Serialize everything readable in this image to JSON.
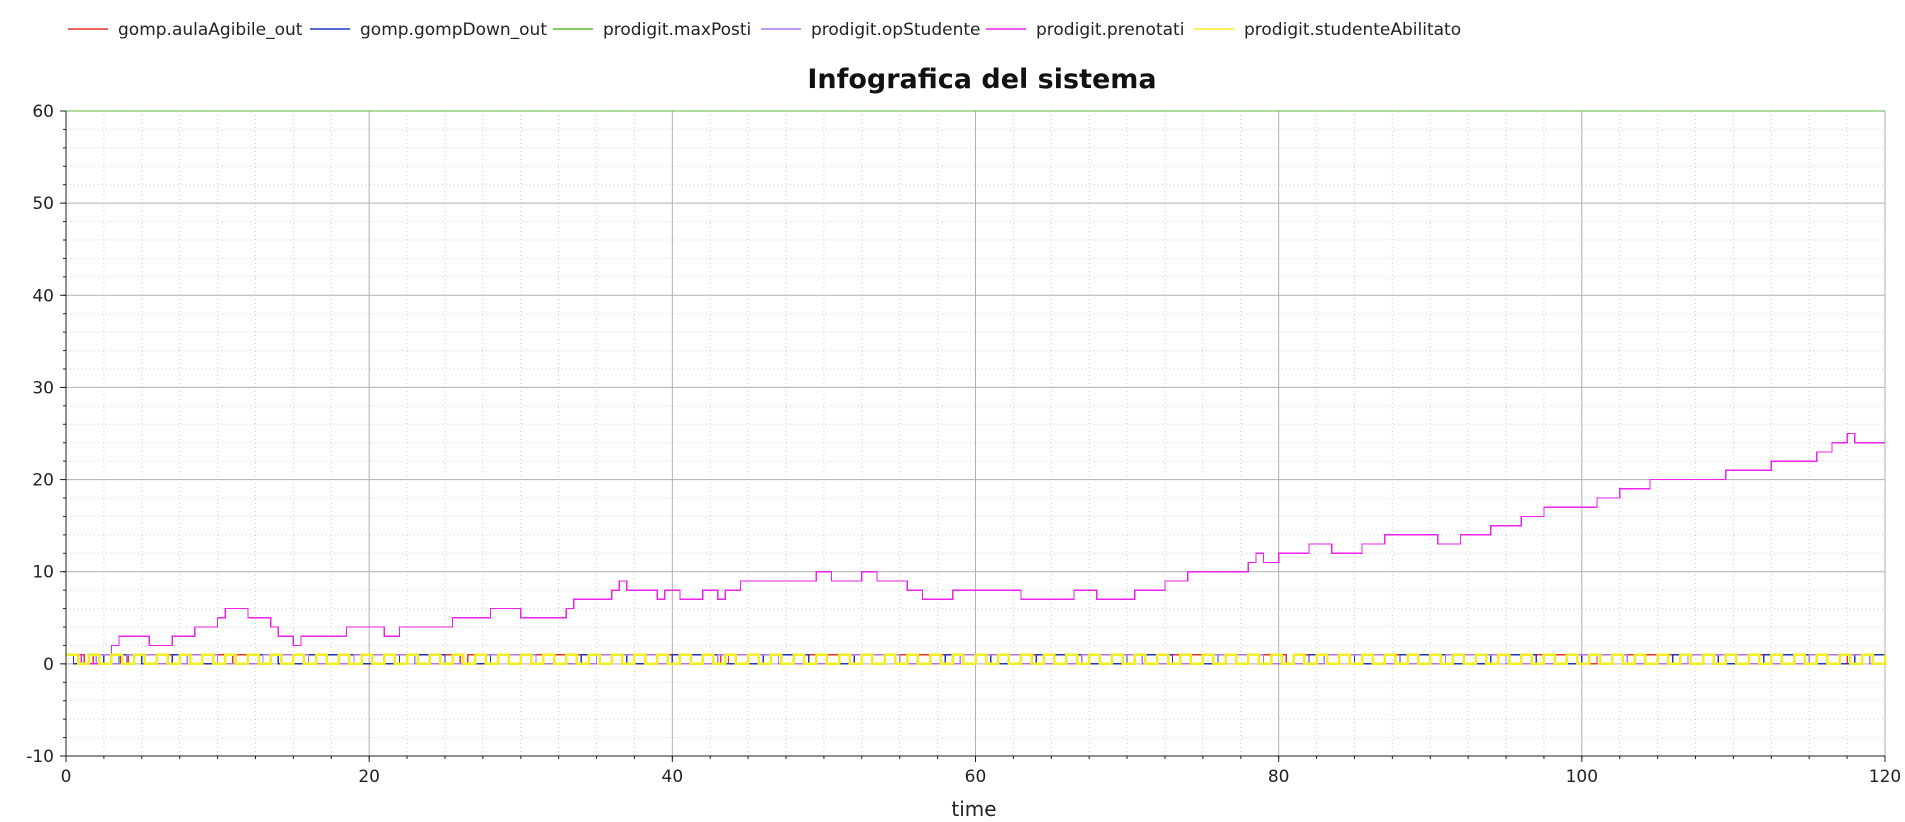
{
  "chart_data": {
    "type": "line",
    "title": "Infografica del sistema",
    "xlabel": "time",
    "ylabel": "",
    "xlim": [
      0,
      120
    ],
    "ylim": [
      -10,
      60
    ],
    "xticks": [
      0,
      20,
      40,
      60,
      80,
      100,
      120
    ],
    "yticks": [
      -10,
      0,
      10,
      20,
      30,
      40,
      50,
      60
    ],
    "grid": true,
    "legend_position": "top",
    "series": [
      {
        "name": "gomp.aulaAgibile_out",
        "color": "#e8332a",
        "step": true,
        "x": [
          0,
          1.2,
          1.8,
          3.6,
          4.1,
          10.5,
          11.0,
          26.0,
          26.5,
          43.2,
          43.7,
          61.0,
          61.5,
          80.5,
          81.0,
          100.5,
          101.0,
          117.5,
          118.0,
          120
        ],
        "y": [
          1,
          0,
          1,
          0,
          1,
          0,
          1,
          0,
          1,
          0,
          1,
          0,
          1,
          0,
          1,
          0,
          1,
          0,
          1,
          1
        ]
      },
      {
        "name": "gomp.gompDown_out",
        "color": "#2233cc",
        "step": true,
        "x": [
          0,
          0.5,
          1.5,
          2.5,
          3.5,
          5.0,
          7.0,
          9.0,
          12.0,
          14.0,
          16.0,
          19.0,
          22.0,
          25.0,
          28.0,
          31.0,
          34.0,
          37.0,
          40.0,
          43.0,
          46.0,
          49.0,
          52.0,
          55.0,
          58.0,
          61.0,
          64.0,
          67.0,
          70.0,
          73.0,
          76.0,
          79.0,
          82.0,
          85.0,
          88.0,
          91.0,
          94.0,
          97.0,
          100.0,
          103.0,
          106.0,
          109.0,
          112.0,
          115.0,
          118.0,
          120
        ],
        "y": [
          1,
          0,
          1,
          0,
          1,
          0,
          1,
          0,
          1,
          0,
          1,
          0,
          1,
          0,
          1,
          0,
          1,
          0,
          1,
          0,
          1,
          0,
          1,
          0,
          1,
          0,
          1,
          0,
          1,
          0,
          1,
          0,
          1,
          0,
          1,
          0,
          1,
          0,
          1,
          0,
          1,
          0,
          1,
          0,
          1,
          1
        ]
      },
      {
        "name": "prodigit.maxPosti",
        "color": "#55bb33",
        "step": true,
        "x": [
          0,
          120
        ],
        "y": [
          60,
          60
        ]
      },
      {
        "name": "prodigit.opStudente",
        "color": "#aa77ee",
        "step": true,
        "x": [
          0,
          1.0,
          2.0,
          3.0,
          4.0,
          6.0,
          8.0,
          10.0,
          13.0,
          16.0,
          19.0,
          23.0,
          27.0,
          31.0,
          35.0,
          39.0,
          43.0,
          47.0,
          51.0,
          55.0,
          59.0,
          63.0,
          67.0,
          71.0,
          75.0,
          79.0,
          83.0,
          87.0,
          91.0,
          95.0,
          99.0,
          103.0,
          107.0,
          111.0,
          115.0,
          119.0,
          120
        ],
        "y": [
          1,
          0,
          1,
          0,
          1,
          0,
          1,
          0,
          1,
          0,
          1,
          0,
          1,
          0,
          1,
          0,
          1,
          0,
          1,
          0,
          1,
          0,
          1,
          0,
          1,
          0,
          1,
          0,
          1,
          0,
          1,
          0,
          1,
          0,
          1,
          0,
          0
        ]
      },
      {
        "name": "prodigit.prenotati",
        "color": "#ee22ee",
        "step": true,
        "x": [
          0,
          1,
          3,
          3.5,
          5.5,
          7,
          8.5,
          10,
          10.5,
          12,
          13.5,
          14,
          15,
          15.5,
          18.5,
          21,
          22,
          25.5,
          28,
          30,
          33,
          33.5,
          34.5,
          36,
          36.5,
          37,
          39,
          39.5,
          40,
          40.5,
          42,
          43,
          43.5,
          44.5,
          49.5,
          50.5,
          52.5,
          53.5,
          55.5,
          56.5,
          58.5,
          63,
          66.5,
          68,
          70.5,
          72.5,
          74,
          78,
          78.5,
          79,
          79.5,
          80,
          82,
          83.5,
          85.5,
          87,
          90.5,
          92,
          94,
          96,
          97.5,
          99,
          101,
          102.5,
          104.5,
          109.5,
          112.5,
          115.5,
          116,
          116.5,
          117.5,
          118,
          120
        ],
        "y": [
          1,
          0,
          2,
          3,
          2,
          3,
          4,
          5,
          6,
          5,
          4,
          3,
          2,
          3,
          4,
          3,
          4,
          5,
          6,
          5,
          6,
          7,
          7,
          8,
          9,
          8,
          7,
          8,
          8,
          7,
          8,
          7,
          8,
          9,
          10,
          9,
          10,
          9,
          8,
          7,
          8,
          7,
          8,
          7,
          8,
          9,
          10,
          11,
          12,
          11,
          11,
          12,
          13,
          12,
          13,
          14,
          13,
          14,
          15,
          16,
          17,
          17,
          18,
          19,
          20,
          21,
          22,
          23,
          23,
          24,
          25,
          24,
          24
        ]
      },
      {
        "name": "prodigit.studenteAbilitato",
        "color": "#f2ee22",
        "step": true,
        "x": [
          0,
          0.8,
          1.5,
          2.2,
          3.0,
          3.7,
          4.5,
          5.2,
          6.0,
          6.7,
          7.5,
          8.2,
          9.0,
          9.7,
          10.5,
          11.2,
          12.0,
          12.7,
          13.5,
          14.2,
          15.0,
          15.7,
          16.5,
          17.2,
          18.0,
          18.7,
          19.5,
          20.2,
          21.0,
          21.7,
          22.5,
          23.2,
          24.0,
          24.7,
          25.5,
          26.2,
          27.0,
          27.7,
          28.5,
          29.2,
          30.0,
          30.7,
          31.5,
          32.2,
          33.0,
          33.7,
          34.5,
          35.2,
          36.0,
          36.7,
          37.5,
          38.2,
          39.0,
          39.7,
          40.5,
          41.2,
          42.0,
          42.7,
          43.5,
          44.2,
          45.0,
          45.7,
          46.5,
          47.2,
          48.0,
          48.7,
          49.5,
          50.2,
          51.0,
          51.7,
          52.5,
          53.2,
          54.0,
          54.7,
          55.5,
          56.2,
          57.0,
          57.7,
          58.5,
          59.2,
          60.0,
          60.7,
          61.5,
          62.2,
          63.0,
          63.7,
          64.5,
          65.2,
          66.0,
          66.7,
          67.5,
          68.2,
          69.0,
          69.7,
          70.5,
          71.2,
          72.0,
          72.7,
          73.5,
          74.2,
          75.0,
          75.7,
          76.5,
          77.2,
          78.0,
          78.7,
          79.5,
          80.2,
          81.0,
          81.7,
          82.5,
          83.2,
          84.0,
          84.7,
          85.5,
          86.2,
          87.0,
          87.7,
          88.5,
          89.2,
          90.0,
          90.7,
          91.5,
          92.2,
          93.0,
          93.7,
          94.5,
          95.2,
          96.0,
          96.7,
          97.5,
          98.2,
          99.0,
          99.7,
          100.5,
          101.2,
          102.0,
          102.7,
          103.5,
          104.2,
          105.0,
          105.7,
          106.5,
          107.2,
          108.0,
          108.7,
          109.5,
          110.2,
          111.0,
          111.7,
          112.5,
          113.2,
          114.0,
          114.7,
          115.5,
          116.2,
          117.0,
          117.7,
          118.5,
          119.2,
          120
        ],
        "y": [
          1,
          0,
          1,
          0,
          1,
          0,
          1,
          0,
          1,
          0,
          1,
          0,
          1,
          0,
          1,
          0,
          1,
          0,
          1,
          0,
          1,
          0,
          1,
          0,
          1,
          0,
          1,
          0,
          1,
          0,
          1,
          0,
          1,
          0,
          1,
          0,
          1,
          0,
          1,
          0,
          1,
          0,
          1,
          0,
          1,
          0,
          1,
          0,
          1,
          0,
          1,
          0,
          1,
          0,
          1,
          0,
          1,
          0,
          1,
          0,
          1,
          0,
          1,
          0,
          1,
          0,
          1,
          0,
          1,
          0,
          1,
          0,
          1,
          0,
          1,
          0,
          1,
          0,
          1,
          0,
          1,
          0,
          1,
          0,
          1,
          0,
          1,
          0,
          1,
          0,
          1,
          0,
          1,
          0,
          1,
          0,
          1,
          0,
          1,
          0,
          1,
          0,
          1,
          0,
          1,
          0,
          1,
          0,
          1,
          0,
          1,
          0,
          1,
          0,
          1,
          0,
          1,
          0,
          1,
          0,
          1,
          0,
          1,
          0,
          1,
          0,
          1,
          0,
          1,
          0,
          1,
          0,
          1,
          0,
          1,
          0,
          1,
          0,
          1,
          0,
          1,
          0,
          1,
          0,
          1,
          0,
          1,
          0,
          1,
          0,
          1,
          0,
          1,
          0,
          1,
          0,
          1,
          0,
          1,
          0,
          1
        ]
      }
    ]
  }
}
